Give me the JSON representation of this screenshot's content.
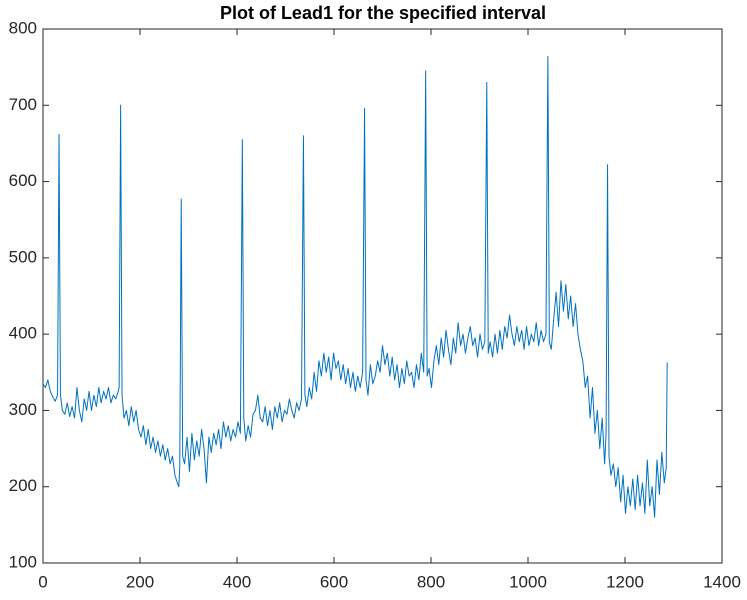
{
  "chart_data": {
    "type": "line",
    "title": "Plot of Lead1 for the specified interval",
    "x": [
      0,
      5,
      10,
      15,
      20,
      25,
      30,
      33,
      36,
      40,
      45,
      50,
      55,
      60,
      65,
      70,
      75,
      80,
      85,
      90,
      95,
      100,
      105,
      110,
      115,
      120,
      125,
      130,
      135,
      140,
      145,
      150,
      155,
      157,
      160,
      163,
      167,
      172,
      177,
      182,
      187,
      192,
      197,
      202,
      207,
      212,
      217,
      222,
      227,
      232,
      237,
      242,
      247,
      252,
      257,
      262,
      267,
      272,
      277,
      280,
      282,
      285,
      288,
      292,
      297,
      302,
      307,
      312,
      317,
      322,
      327,
      332,
      337,
      342,
      347,
      352,
      357,
      362,
      367,
      372,
      377,
      382,
      387,
      392,
      397,
      402,
      407,
      411,
      414,
      418,
      423,
      428,
      433,
      438,
      443,
      448,
      453,
      458,
      463,
      468,
      473,
      478,
      483,
      488,
      493,
      498,
      503,
      508,
      513,
      518,
      523,
      528,
      533,
      537,
      540,
      544,
      549,
      554,
      559,
      564,
      569,
      574,
      579,
      584,
      589,
      594,
      599,
      604,
      609,
      614,
      619,
      624,
      629,
      634,
      639,
      644,
      649,
      654,
      659,
      663,
      666,
      670,
      675,
      680,
      685,
      690,
      695,
      700,
      705,
      710,
      715,
      720,
      725,
      730,
      735,
      740,
      745,
      750,
      755,
      760,
      765,
      770,
      775,
      780,
      785,
      789,
      792,
      796,
      801,
      806,
      811,
      816,
      821,
      826,
      831,
      836,
      841,
      846,
      851,
      856,
      861,
      866,
      871,
      876,
      881,
      886,
      891,
      896,
      901,
      906,
      911,
      915,
      918,
      922,
      927,
      932,
      937,
      942,
      947,
      952,
      957,
      962,
      967,
      972,
      977,
      982,
      987,
      992,
      997,
      1002,
      1007,
      1012,
      1017,
      1022,
      1027,
      1032,
      1037,
      1041,
      1044,
      1048,
      1053,
      1058,
      1063,
      1068,
      1073,
      1078,
      1083,
      1088,
      1093,
      1098,
      1103,
      1108,
      1113,
      1118,
      1123,
      1128,
      1133,
      1138,
      1143,
      1148,
      1153,
      1158,
      1161,
      1164,
      1167,
      1171,
      1176,
      1181,
      1186,
      1191,
      1196,
      1201,
      1206,
      1211,
      1216,
      1221,
      1226,
      1231,
      1236,
      1241,
      1246,
      1251,
      1256,
      1261,
      1266,
      1271,
      1276,
      1281,
      1285,
      1287
    ],
    "series": [
      {
        "color": "#0072bd",
        "values": [
          335,
          330,
          340,
          325,
          318,
          312,
          320,
          662,
          320,
          300,
          295,
          310,
          292,
          305,
          290,
          330,
          300,
          285,
          315,
          300,
          325,
          300,
          320,
          305,
          330,
          310,
          325,
          315,
          330,
          310,
          320,
          315,
          325,
          330,
          700,
          320,
          290,
          300,
          280,
          305,
          285,
          300,
          275,
          265,
          280,
          255,
          275,
          250,
          265,
          245,
          260,
          240,
          255,
          235,
          250,
          230,
          240,
          215,
          205,
          200,
          225,
          577,
          240,
          230,
          265,
          220,
          270,
          235,
          260,
          240,
          275,
          250,
          205,
          265,
          245,
          270,
          255,
          275,
          250,
          285,
          265,
          280,
          260,
          275,
          265,
          285,
          270,
          655,
          290,
          260,
          280,
          265,
          295,
          300,
          320,
          290,
          285,
          305,
          280,
          300,
          275,
          305,
          290,
          310,
          285,
          300,
          295,
          315,
          300,
          290,
          310,
          300,
          315,
          660,
          320,
          305,
          330,
          315,
          350,
          325,
          365,
          345,
          375,
          350,
          370,
          340,
          375,
          355,
          365,
          340,
          360,
          335,
          355,
          330,
          350,
          325,
          345,
          330,
          350,
          696,
          340,
          320,
          360,
          335,
          345,
          365,
          350,
          385,
          360,
          375,
          345,
          370,
          340,
          360,
          330,
          355,
          335,
          365,
          345,
          350,
          330,
          360,
          340,
          375,
          350,
          745,
          345,
          355,
          330,
          365,
          385,
          360,
          395,
          370,
          405,
          380,
          360,
          395,
          375,
          415,
          385,
          400,
          375,
          395,
          410,
          385,
          395,
          370,
          400,
          380,
          390,
          730,
          375,
          390,
          370,
          400,
          375,
          405,
          380,
          410,
          395,
          425,
          400,
          385,
          410,
          390,
          405,
          380,
          410,
          385,
          400,
          390,
          415,
          385,
          405,
          390,
          400,
          764,
          390,
          380,
          420,
          455,
          410,
          470,
          430,
          465,
          420,
          450,
          410,
          440,
          400,
          380,
          365,
          330,
          345,
          290,
          330,
          270,
          300,
          250,
          290,
          230,
          270,
          622,
          240,
          215,
          230,
          200,
          225,
          180,
          215,
          165,
          200,
          175,
          210,
          170,
          215,
          175,
          205,
          165,
          235,
          175,
          200,
          160,
          235,
          190,
          245,
          205,
          225,
          363
        ]
      }
    ],
    "xlim": [
      0,
      1400
    ],
    "xticks": [
      0,
      200,
      400,
      600,
      800,
      1000,
      1200,
      1400
    ],
    "ylim": [
      100,
      800
    ],
    "yticks": [
      100,
      200,
      300,
      400,
      500,
      600,
      700,
      800
    ]
  }
}
